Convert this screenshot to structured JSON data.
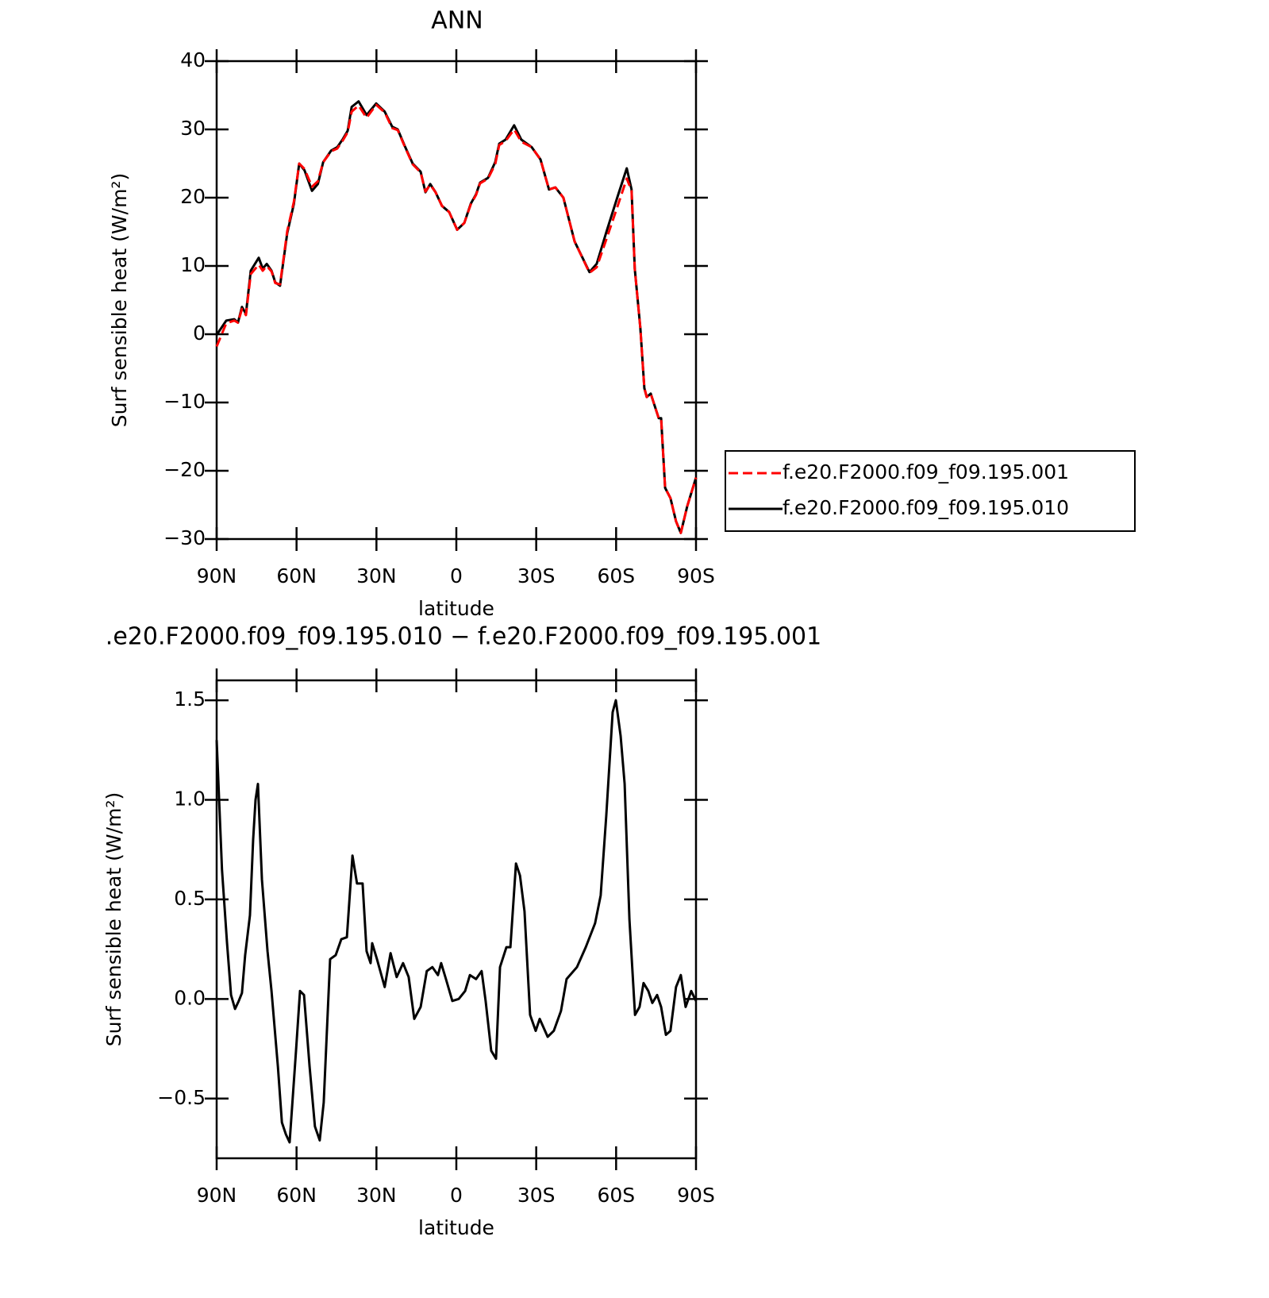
{
  "chart_data": [
    {
      "type": "line",
      "title": "ANN",
      "xlabel": "latitude",
      "ylabel": "Surf sensible heat (W/m²)",
      "xlim": [
        90,
        -90
      ],
      "xticks": [
        {
          "value": 90,
          "label": "90N"
        },
        {
          "value": 60,
          "label": "60N"
        },
        {
          "value": 30,
          "label": "30N"
        },
        0,
        {
          "value": -30,
          "label": "30S"
        },
        {
          "value": -60,
          "label": "60S"
        },
        {
          "value": -90,
          "label": "90S"
        }
      ],
      "ylim": [
        -30,
        40
      ],
      "yticks": [
        {
          "value": -30,
          "label": "−30"
        },
        {
          "value": -20,
          "label": "−20"
        },
        {
          "value": -10,
          "label": "−10"
        },
        0,
        10,
        20,
        30,
        40
      ],
      "grid": false,
      "legend": "right",
      "x": [
        90,
        86.4,
        83.4,
        82,
        80.5,
        79,
        77.2,
        74.2,
        72.7,
        71.2,
        69.4,
        68,
        66.2,
        63.5,
        61,
        59,
        57,
        54.2,
        52,
        50,
        47,
        44.7,
        42.6,
        40.8,
        39.3,
        36.7,
        33.7,
        30.1,
        26.9,
        24.1,
        22,
        19.4,
        16.4,
        13.4,
        11.6,
        9.8,
        7.8,
        5.4,
        2.7,
        -0.3,
        -3,
        -5.4,
        -7.4,
        -8.9,
        -11.9,
        -14.6,
        -16.1,
        -18.5,
        -21.7,
        -24.4,
        -28.3,
        -31.6,
        -34.8,
        -37.2,
        -40.2,
        -44.4,
        -50,
        -52.7,
        -56.6,
        -60.5,
        -64,
        -65.8,
        -67,
        -69.1,
        -70.6,
        -71.5,
        -73,
        -76,
        -76.9,
        -78.4,
        -80.4,
        -82.5,
        -84.3,
        -86.7,
        -90
      ],
      "series": [
        {
          "name": "f.e20.F2000.f09_f09.195.001",
          "color": "#ff0000",
          "style": "dashed",
          "values": [
            -1.8,
            1.6,
            2.0,
            1.7,
            3.7,
            2.8,
            8.8,
            10.2,
            9.3,
            10.0,
            9.2,
            7.5,
            7.3,
            15.1,
            19.4,
            25.0,
            24.2,
            21.6,
            22.4,
            25.2,
            26.8,
            27.2,
            28.4,
            29.6,
            32.6,
            33.5,
            31.7,
            33.6,
            32.5,
            30.2,
            29.9,
            27.5,
            24.9,
            23.7,
            20.9,
            21.9,
            20.8,
            18.8,
            17.9,
            15.3,
            16.3,
            19.0,
            20.4,
            22.1,
            22.8,
            24.9,
            27.7,
            28.3,
            30.0,
            28.2,
            27.4,
            25.6,
            21.2,
            21.5,
            20.0,
            13.6,
            9.0,
            9.8,
            14.2,
            18.7,
            22.8,
            21.0,
            9.6,
            0.9,
            -7.9,
            -9.2,
            -8.7,
            -12.3,
            -12.3,
            -22.5,
            -24,
            -27.4,
            -29.1,
            -25.2,
            -21
          ]
        },
        {
          "name": "f.e20.F2000.f09_f09.195.010",
          "color": "#000000",
          "style": "solid",
          "values": [
            -0.1,
            2.0,
            2.2,
            1.7,
            4.0,
            3.0,
            9.3,
            11.2,
            9.6,
            10.3,
            9.3,
            7.6,
            7.1,
            14.8,
            19.1,
            25.0,
            24.0,
            21.0,
            22,
            25.2,
            26.9,
            27.4,
            28.6,
            29.8,
            33.3,
            34.1,
            32.1,
            33.8,
            32.6,
            30.4,
            30,
            27.6,
            25,
            23.8,
            20.8,
            22,
            20.8,
            18.8,
            17.9,
            15.3,
            16.3,
            19.1,
            20.5,
            22.2,
            22.9,
            25.2,
            27.9,
            28.5,
            30.6,
            28.5,
            27.4,
            25.6,
            21.2,
            21.5,
            20,
            13.6,
            9.1,
            10.3,
            15.3,
            20.1,
            24.3,
            21.2,
            9.6,
            0.9,
            -7.9,
            -9.2,
            -8.7,
            -12.3,
            -12.3,
            -22.5,
            -24,
            -27.4,
            -29.1,
            -25.2,
            -21
          ]
        }
      ]
    },
    {
      "type": "line",
      "title": ".e20.F2000.f09_f09.195.010 − f.e20.F2000.f09_f09.195.001",
      "xlabel": "latitude",
      "ylabel": "Surf sensible heat (W/m²)",
      "xlim": [
        90,
        -90
      ],
      "xticks": [
        {
          "value": 90,
          "label": "90N"
        },
        {
          "value": 60,
          "label": "60N"
        },
        {
          "value": 30,
          "label": "30N"
        },
        0,
        {
          "value": -30,
          "label": "30S"
        },
        {
          "value": -60,
          "label": "60S"
        },
        {
          "value": -90,
          "label": "90S"
        }
      ],
      "ylim": [
        -0.8,
        1.6
      ],
      "yticks": [
        {
          "value": -0.5,
          "label": "−0.5"
        },
        {
          "value": 0,
          "label": "0.0"
        },
        0.5,
        {
          "value": 1,
          "label": "1.0"
        },
        1.5
      ],
      "grid": false,
      "x": [
        90,
        88,
        86.1,
        84.6,
        83.1,
        81.7,
        80.5,
        79.3,
        77.5,
        76.3,
        75.4,
        74.5,
        73,
        70.9,
        69.4,
        67,
        65.5,
        64,
        62.6,
        60.2,
        58.7,
        57.2,
        55.1,
        53.1,
        51.3,
        49.8,
        47.4,
        45.3,
        43.2,
        41.1,
        39,
        37.3,
        35.2,
        33.7,
        32.2,
        31.6,
        29.8,
        26.9,
        24.7,
        22.4,
        20,
        17.9,
        15.8,
        13.4,
        11.1,
        9,
        6.9,
        5.7,
        3.9,
        1.5,
        -0.9,
        -3.3,
        -5.1,
        -7.4,
        -9.5,
        -11,
        -13.1,
        -14.9,
        -16.4,
        -18.8,
        -20.3,
        -22.4,
        -23.9,
        -25.6,
        -27.7,
        -29.8,
        -31.3,
        -34.3,
        -36.6,
        -39.3,
        -41.4,
        -45.3,
        -48.6,
        -52.1,
        -54.2,
        -56.3,
        -58.7,
        -59.9,
        -61.7,
        -63.2,
        -65,
        -67.1,
        -68.8,
        -70.3,
        -72.1,
        -73.6,
        -75.4,
        -76.9,
        -78.7,
        -80.4,
        -82.5,
        -84.3,
        -86.1,
        -88.2,
        -90
      ],
      "series": [
        {
          "color": "#000000",
          "style": "solid",
          "values": [
            1.3,
            0.65,
            0.28,
            0.02,
            -0.05,
            -0.01,
            0.03,
            0.22,
            0.42,
            0.8,
            1.0,
            1.08,
            0.6,
            0.24,
            0.04,
            -0.34,
            -0.62,
            -0.68,
            -0.72,
            -0.26,
            0.04,
            0.02,
            -0.34,
            -0.64,
            -0.71,
            -0.52,
            0.2,
            0.22,
            0.3,
            0.31,
            0.72,
            0.58,
            0.58,
            0.24,
            0.18,
            0.28,
            0.2,
            0.06,
            0.23,
            0.11,
            0.18,
            0.11,
            -0.1,
            -0.04,
            0.14,
            0.16,
            0.12,
            0.18,
            0.1,
            -0.01,
            0,
            0.04,
            0.12,
            0.1,
            0.14,
            -0.01,
            -0.26,
            -0.3,
            0.16,
            0.26,
            0.26,
            0.68,
            0.62,
            0.44,
            -0.08,
            -0.16,
            -0.1,
            -0.19,
            -0.16,
            -0.06,
            0.1,
            0.16,
            0.26,
            0.38,
            0.52,
            0.92,
            1.44,
            1.5,
            1.32,
            1.08,
            0.4,
            -0.08,
            -0.04,
            0.08,
            0.04,
            -0.02,
            0.02,
            -0.04,
            -0.18,
            -0.16,
            0.06,
            0.12,
            -0.04,
            0.04,
            -0.01
          ]
        }
      ]
    }
  ]
}
